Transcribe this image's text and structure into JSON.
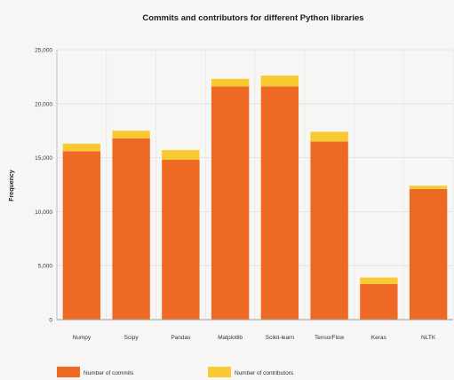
{
  "chart_data": {
    "type": "bar",
    "stacked": true,
    "title": "Commits and contributors for different Python libraries",
    "xlabel": "",
    "ylabel": "Frequency",
    "ylim": [
      0,
      25000
    ],
    "yticks": [
      0,
      5000,
      10000,
      15000,
      20000,
      25000
    ],
    "ytick_labels": [
      "0",
      "5,000",
      "10,000",
      "15,000",
      "20,000",
      "25,000"
    ],
    "grid": true,
    "legend_position": "bottom",
    "categories": [
      "Numpy",
      "Scipy",
      "Pandas",
      "Matplotlib",
      "Scikit-learn",
      "TensorFlow",
      "Keras",
      "NLTK"
    ],
    "series": [
      {
        "name": "Number of commits",
        "color": "#ee6a24",
        "values": [
          15600,
          16800,
          14800,
          21600,
          21600,
          16500,
          3300,
          12100
        ]
      },
      {
        "name": "Number of contributors",
        "color": "#f8c931",
        "values": [
          700,
          700,
          900,
          700,
          1000,
          900,
          600,
          300
        ]
      }
    ]
  }
}
